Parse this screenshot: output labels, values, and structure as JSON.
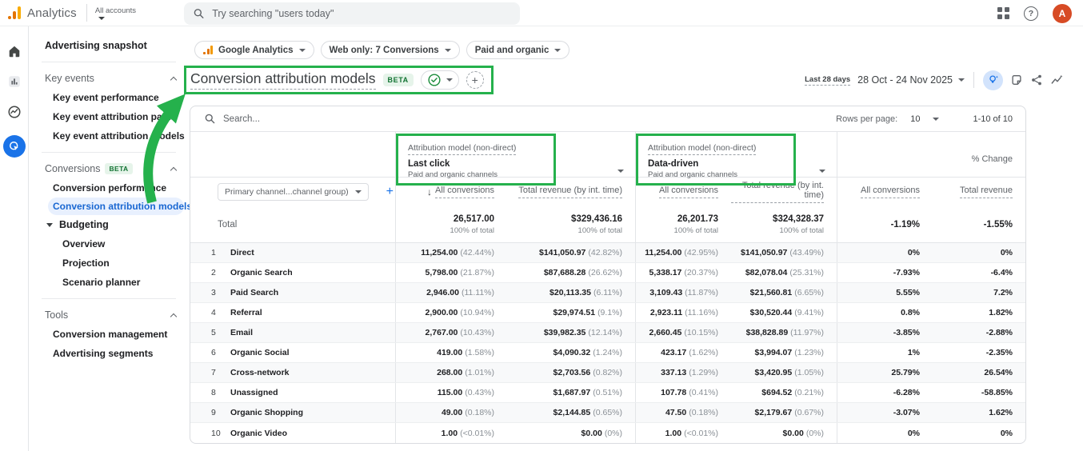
{
  "topbar": {
    "app_name": "Analytics",
    "account_label": "All accounts",
    "search_placeholder": "Try searching \"users today\"",
    "avatar_letter": "A"
  },
  "rail_icons": [
    "home-icon",
    "reports-icon",
    "explore-icon",
    "advertising-icon"
  ],
  "sidebar": {
    "snapshot": "Advertising snapshot",
    "sections": [
      {
        "label": "Key events",
        "items": [
          {
            "label": "Key event performance"
          },
          {
            "label": "Key event attribution paths"
          },
          {
            "label": "Key event attribution models"
          }
        ]
      },
      {
        "label": "Conversions",
        "badge": "BETA",
        "items": [
          {
            "label": "Conversion performance"
          },
          {
            "label": "Conversion attribution models",
            "selected": true
          },
          {
            "label": "Budgeting",
            "expanded": true,
            "children": [
              {
                "label": "Overview"
              },
              {
                "label": "Projection"
              },
              {
                "label": "Scenario planner"
              }
            ]
          }
        ]
      },
      {
        "label": "Tools",
        "items": [
          {
            "label": "Conversion management"
          },
          {
            "label": "Advertising segments"
          }
        ]
      }
    ]
  },
  "filters": {
    "property_chip": "Google Analytics",
    "conversions_chip": "Web only: 7 Conversions",
    "channels_chip": "Paid and organic"
  },
  "page": {
    "title": "Conversion attribution models",
    "beta_badge": "BETA",
    "date_preset": "Last 28 days",
    "date_range": "28 Oct - 24 Nov 2025"
  },
  "annotations": {
    "highlight_color": "#25b14c",
    "highlighted_elements": [
      "page-title",
      "attribution-model-1-header",
      "attribution-model-2-header"
    ],
    "arrow": "from sidebar item 'Conversion attribution models' to page title"
  },
  "table": {
    "search_placeholder": "Search...",
    "rows_per_page_label": "Rows per page:",
    "rows_per_page_value": "10",
    "range_label": "1-10 of 10",
    "dimension_chip": "Primary channel...channel group)",
    "models": [
      {
        "eyebrow": "Attribution model (non-direct)",
        "name": "Last click",
        "subtitle": "Paid and organic channels",
        "col_conversions": "All conversions",
        "col_revenue": "Total revenue (by int. time)"
      },
      {
        "eyebrow": "Attribution model (non-direct)",
        "name": "Data-driven",
        "subtitle": "Paid and organic channels",
        "col_conversions": "All conversions",
        "col_revenue": "Total revenue (by int. time)"
      }
    ],
    "change_group_header": "% Change",
    "change_col_conversions": "All conversions",
    "change_col_revenue": "Total revenue",
    "total_row": {
      "label": "Total",
      "m1_conv": "26,517.00",
      "m1_conv_sub": "100% of total",
      "m1_rev": "$329,436.16",
      "m1_rev_sub": "100% of total",
      "m2_conv": "26,201.73",
      "m2_conv_sub": "100% of total",
      "m2_rev": "$324,328.37",
      "m2_rev_sub": "100% of total",
      "chg_conv": "-1.19%",
      "chg_rev": "-1.55%"
    },
    "rows": [
      {
        "rank": "1",
        "channel": "Direct",
        "m1_conv": "11,254.00",
        "m1_conv_pct": "(42.44%)",
        "m1_rev": "$141,050.97",
        "m1_rev_pct": "(42.82%)",
        "m2_conv": "11,254.00",
        "m2_conv_pct": "(42.95%)",
        "m2_rev": "$141,050.97",
        "m2_rev_pct": "(43.49%)",
        "chg_conv": "0%",
        "chg_rev": "0%"
      },
      {
        "rank": "2",
        "channel": "Organic Search",
        "m1_conv": "5,798.00",
        "m1_conv_pct": "(21.87%)",
        "m1_rev": "$87,688.28",
        "m1_rev_pct": "(26.62%)",
        "m2_conv": "5,338.17",
        "m2_conv_pct": "(20.37%)",
        "m2_rev": "$82,078.04",
        "m2_rev_pct": "(25.31%)",
        "chg_conv": "-7.93%",
        "chg_rev": "-6.4%"
      },
      {
        "rank": "3",
        "channel": "Paid Search",
        "m1_conv": "2,946.00",
        "m1_conv_pct": "(11.11%)",
        "m1_rev": "$20,113.35",
        "m1_rev_pct": "(6.11%)",
        "m2_conv": "3,109.43",
        "m2_conv_pct": "(11.87%)",
        "m2_rev": "$21,560.81",
        "m2_rev_pct": "(6.65%)",
        "chg_conv": "5.55%",
        "chg_rev": "7.2%"
      },
      {
        "rank": "4",
        "channel": "Referral",
        "m1_conv": "2,900.00",
        "m1_conv_pct": "(10.94%)",
        "m1_rev": "$29,974.51",
        "m1_rev_pct": "(9.1%)",
        "m2_conv": "2,923.11",
        "m2_conv_pct": "(11.16%)",
        "m2_rev": "$30,520.44",
        "m2_rev_pct": "(9.41%)",
        "chg_conv": "0.8%",
        "chg_rev": "1.82%"
      },
      {
        "rank": "5",
        "channel": "Email",
        "m1_conv": "2,767.00",
        "m1_conv_pct": "(10.43%)",
        "m1_rev": "$39,982.35",
        "m1_rev_pct": "(12.14%)",
        "m2_conv": "2,660.45",
        "m2_conv_pct": "(10.15%)",
        "m2_rev": "$38,828.89",
        "m2_rev_pct": "(11.97%)",
        "chg_conv": "-3.85%",
        "chg_rev": "-2.88%"
      },
      {
        "rank": "6",
        "channel": "Organic Social",
        "m1_conv": "419.00",
        "m1_conv_pct": "(1.58%)",
        "m1_rev": "$4,090.32",
        "m1_rev_pct": "(1.24%)",
        "m2_conv": "423.17",
        "m2_conv_pct": "(1.62%)",
        "m2_rev": "$3,994.07",
        "m2_rev_pct": "(1.23%)",
        "chg_conv": "1%",
        "chg_rev": "-2.35%"
      },
      {
        "rank": "7",
        "channel": "Cross-network",
        "m1_conv": "268.00",
        "m1_conv_pct": "(1.01%)",
        "m1_rev": "$2,703.56",
        "m1_rev_pct": "(0.82%)",
        "m2_conv": "337.13",
        "m2_conv_pct": "(1.29%)",
        "m2_rev": "$3,420.95",
        "m2_rev_pct": "(1.05%)",
        "chg_conv": "25.79%",
        "chg_rev": "26.54%"
      },
      {
        "rank": "8",
        "channel": "Unassigned",
        "m1_conv": "115.00",
        "m1_conv_pct": "(0.43%)",
        "m1_rev": "$1,687.97",
        "m1_rev_pct": "(0.51%)",
        "m2_conv": "107.78",
        "m2_conv_pct": "(0.41%)",
        "m2_rev": "$694.52",
        "m2_rev_pct": "(0.21%)",
        "chg_conv": "-6.28%",
        "chg_rev": "-58.85%"
      },
      {
        "rank": "9",
        "channel": "Organic Shopping",
        "m1_conv": "49.00",
        "m1_conv_pct": "(0.18%)",
        "m1_rev": "$2,144.85",
        "m1_rev_pct": "(0.65%)",
        "m2_conv": "47.50",
        "m2_conv_pct": "(0.18%)",
        "m2_rev": "$2,179.67",
        "m2_rev_pct": "(0.67%)",
        "chg_conv": "-3.07%",
        "chg_rev": "1.62%"
      },
      {
        "rank": "10",
        "channel": "Organic Video",
        "m1_conv": "1.00",
        "m1_conv_pct": "(<0.01%)",
        "m1_rev": "$0.00",
        "m1_rev_pct": "(0%)",
        "m2_conv": "1.00",
        "m2_conv_pct": "(<0.01%)",
        "m2_rev": "$0.00",
        "m2_rev_pct": "(0%)",
        "chg_conv": "0%",
        "chg_rev": "0%"
      }
    ]
  }
}
